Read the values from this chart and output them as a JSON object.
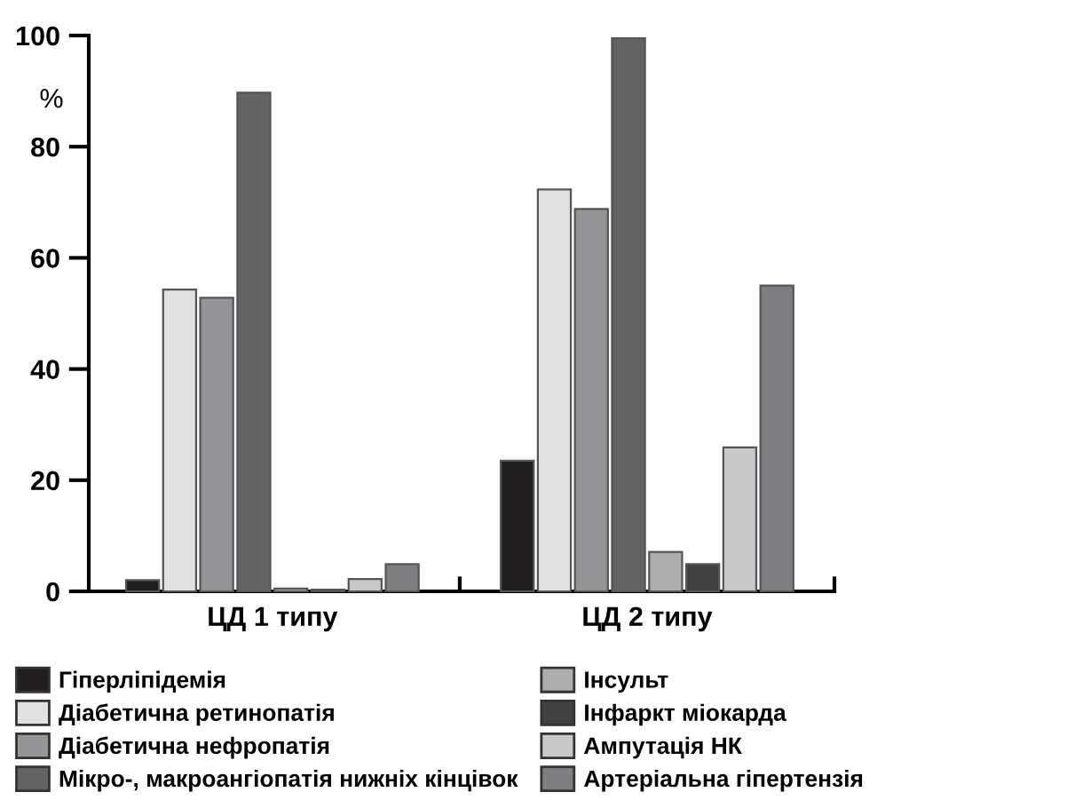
{
  "chart_data": {
    "type": "bar",
    "ylabel": "%",
    "categories": [
      "ЦД 1 типу",
      "ЦД 2 типу"
    ],
    "ylim": [
      0,
      100
    ],
    "yticks": [
      0,
      20,
      40,
      60,
      80,
      100
    ],
    "grid": false,
    "legend": "bottom",
    "series": [
      {
        "name": "Гіперліпідемія",
        "color": "#231f20",
        "values": [
          2.0,
          23.5
        ]
      },
      {
        "name": "Діабетична ретинопатія",
        "color": "#e0e1e3",
        "values": [
          54.3,
          72.3
        ]
      },
      {
        "name": "Діабетична нефропатія",
        "color": "#939598",
        "values": [
          52.8,
          68.8
        ]
      },
      {
        "name": "Мікро-, макроангіопатія нижніх кінцівок",
        "color": "#616365",
        "values": [
          89.7,
          99.5
        ]
      },
      {
        "name": "Інсульт",
        "color": "#adadad",
        "values": [
          0.5,
          7.1
        ]
      },
      {
        "name": "Інфаркт міокарда",
        "color": "#414042",
        "values": [
          0.3,
          4.9
        ]
      },
      {
        "name": "Ампутація НК",
        "color": "#c7c8ca",
        "values": [
          2.2,
          25.9
        ]
      },
      {
        "name": "Артеріальна гіпертензія",
        "color": "#7d7e81",
        "values": [
          4.9,
          55.0
        ]
      }
    ]
  }
}
